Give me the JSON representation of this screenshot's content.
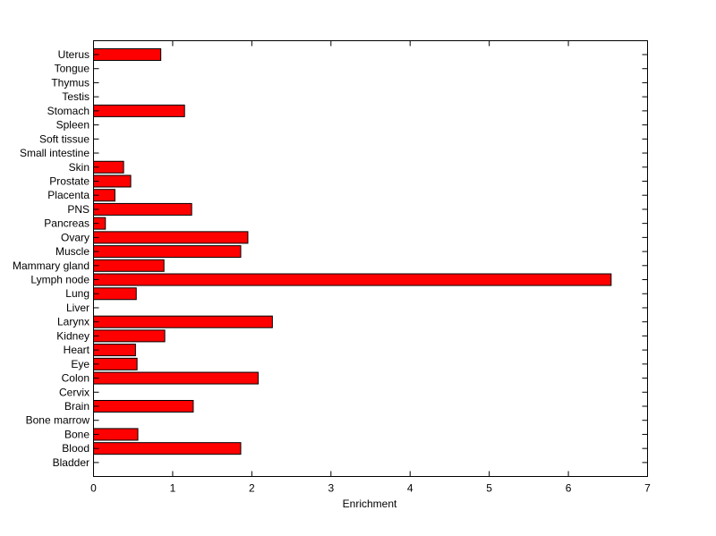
{
  "chart_data": {
    "type": "bar",
    "orientation": "horizontal",
    "xlabel": "Enrichment",
    "ylabel": "",
    "title": "",
    "xlim": [
      0,
      7
    ],
    "xticks": [
      0,
      1,
      2,
      3,
      4,
      5,
      6,
      7
    ],
    "grid": false,
    "bar_color": "#ff0000",
    "categories": [
      "Uterus",
      "Tongue",
      "Thymus",
      "Testis",
      "Stomach",
      "Spleen",
      "Soft tissue",
      "Small intestine",
      "Skin",
      "Prostate",
      "Placenta",
      "PNS",
      "Pancreas",
      "Ovary",
      "Muscle",
      "Mammary gland",
      "Lymph node",
      "Lung",
      "Liver",
      "Larynx",
      "Kidney",
      "Heart",
      "Eye",
      "Colon",
      "Cervix",
      "Brain",
      "Bone marrow",
      "Bone",
      "Blood",
      "Bladder"
    ],
    "values": [
      0.85,
      0,
      0,
      0,
      1.15,
      0,
      0,
      0,
      0.38,
      0.47,
      0.27,
      1.24,
      0.15,
      1.95,
      1.86,
      0.89,
      6.54,
      0.54,
      0,
      2.26,
      0.9,
      0.53,
      0.55,
      2.08,
      0,
      1.26,
      0,
      0.56,
      1.86,
      0
    ]
  }
}
